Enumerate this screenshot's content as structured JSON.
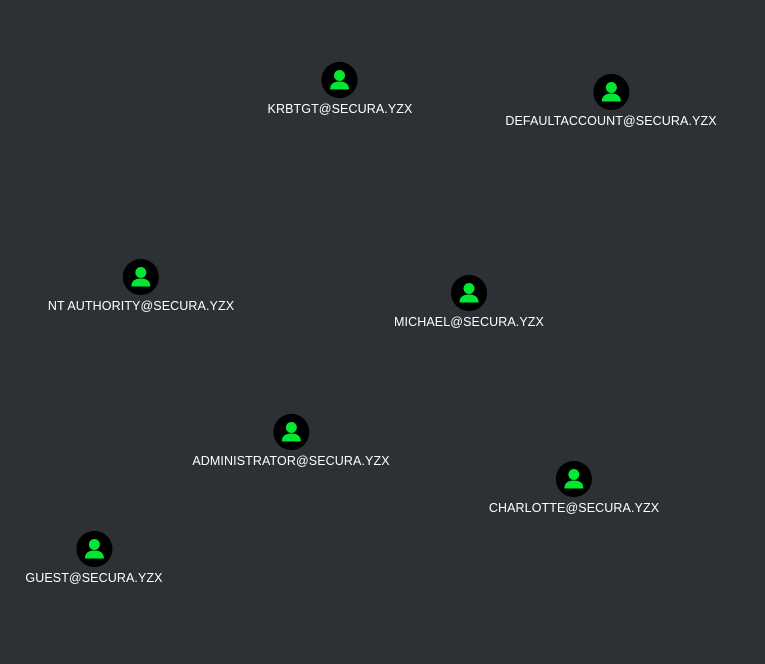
{
  "graph": {
    "background": "#2d3136",
    "node_icon": "user-icon",
    "node_icon_color": "#00e832",
    "node_circle_color": "#000000",
    "label_color": "#ffffff",
    "nodes": [
      {
        "label": "KRBTGT@SECURA.YZX",
        "type": "user"
      },
      {
        "label": "DEFAULTACCOUNT@SECURA.YZX",
        "type": "user"
      },
      {
        "label": "NT AUTHORITY@SECURA.YZX",
        "type": "user"
      },
      {
        "label": "MICHAEL@SECURA.YZX",
        "type": "user"
      },
      {
        "label": "ADMINISTRATOR@SECURA.YZX",
        "type": "user"
      },
      {
        "label": "CHARLOTTE@SECURA.YZX",
        "type": "user"
      },
      {
        "label": "GUEST@SECURA.YZX",
        "type": "user"
      }
    ]
  }
}
